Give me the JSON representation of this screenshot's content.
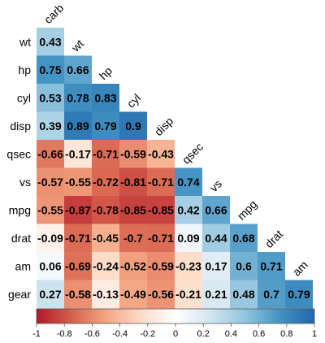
{
  "chart_data": {
    "type": "heatmap",
    "variant": "lower-triangular correlation matrix",
    "row_labels": [
      "wt",
      "hp",
      "cyl",
      "disp",
      "qsec",
      "vs",
      "mpg",
      "drat",
      "am",
      "gear"
    ],
    "col_labels": [
      "carb",
      "wt",
      "hp",
      "cyl",
      "disp",
      "qsec",
      "vs",
      "mpg",
      "drat",
      "am"
    ],
    "values": [
      [
        0.43
      ],
      [
        0.75,
        0.66
      ],
      [
        0.53,
        0.78,
        0.83
      ],
      [
        0.39,
        0.89,
        0.79,
        0.9
      ],
      [
        -0.66,
        -0.17,
        -0.71,
        -0.59,
        -0.43
      ],
      [
        -0.57,
        -0.55,
        -0.72,
        -0.81,
        -0.71,
        0.74
      ],
      [
        -0.55,
        -0.87,
        -0.78,
        -0.85,
        -0.85,
        0.42,
        0.66
      ],
      [
        -0.09,
        -0.71,
        -0.45,
        -0.7,
        -0.71,
        0.09,
        0.44,
        0.68
      ],
      [
        0.06,
        -0.69,
        -0.24,
        -0.52,
        -0.59,
        -0.23,
        0.17,
        0.6,
        0.71
      ],
      [
        0.27,
        -0.58,
        -0.13,
        -0.49,
        -0.56,
        -0.21,
        0.21,
        0.48,
        0.7,
        0.79
      ]
    ],
    "colorbar": {
      "range": [
        -1,
        1
      ],
      "ticks": [
        "-1",
        "-0.8",
        "-0.6",
        "-0.4",
        "-0.2",
        "0",
        "0.2",
        "0.4",
        "0.6",
        "0.8",
        "1"
      ],
      "placement": "bottom"
    },
    "colors": {
      "negative": "#b2182b",
      "neg_mid": "#d6604d",
      "neg_light": "#f4a582",
      "neg_pale": "#fddbc7",
      "zero": "#ffffff",
      "pos_pale": "#d1e5f0",
      "pos_light": "#92c5de",
      "pos_mid": "#4393c3",
      "positive": "#2166ac"
    },
    "grid": false,
    "legend": "colorbar-bottom"
  }
}
